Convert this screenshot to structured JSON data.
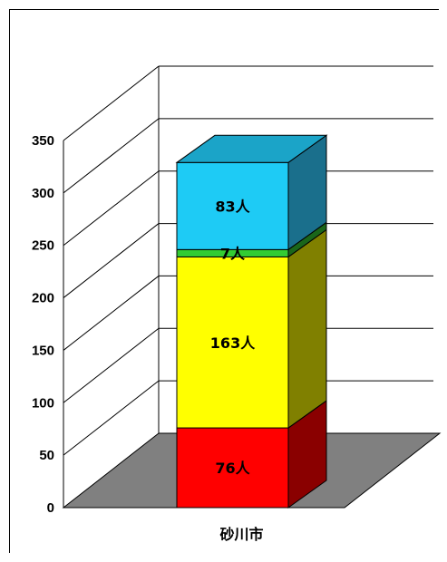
{
  "chart_data": {
    "type": "bar",
    "stacked": true,
    "three_d": true,
    "categories": [
      "砂川市"
    ],
    "series": [
      {
        "values": [
          76
        ],
        "label": "76人",
        "color": "#ff0000",
        "side_color": "#8a0000",
        "top_color": "#ff0000"
      },
      {
        "values": [
          163
        ],
        "label": "163人",
        "color": "#ffff00",
        "side_color": "#808000",
        "top_color": "#ffff00"
      },
      {
        "values": [
          7
        ],
        "label": "7人",
        "color": "#33cc33",
        "side_color": "#1a661a",
        "top_color": "#33cc33"
      },
      {
        "values": [
          83
        ],
        "label": "83人",
        "color": "#1ecbf5",
        "side_color": "#1a6f8c",
        "top_color": "#1ba4c8"
      }
    ],
    "ylim": [
      0,
      350
    ],
    "yticks": [
      "0",
      "50",
      "100",
      "150",
      "200",
      "250",
      "300",
      "350"
    ],
    "grid": true,
    "floor_color": "#808080",
    "title": "",
    "xlabel": "",
    "ylabel": ""
  }
}
